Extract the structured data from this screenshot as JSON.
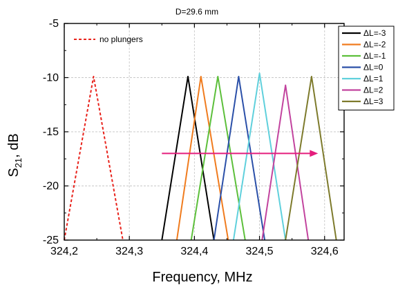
{
  "chart_data": {
    "type": "line",
    "title": "D=29.6 mm",
    "xlabel": "Frequency, MHz",
    "ylabel_main": "S",
    "ylabel_sub": "21",
    "ylabel_rest": ", dB",
    "xlim": [
      324.2,
      324.63
    ],
    "ylim": [
      -25,
      -5
    ],
    "xticks": [
      324.2,
      324.3,
      324.4,
      324.5,
      324.6
    ],
    "xtick_labels": [
      "324,2",
      "324,3",
      "324,4",
      "324,5",
      "324,6"
    ],
    "yticks": [
      -25,
      -20,
      -15,
      -10,
      -5
    ],
    "ytick_labels": [
      "-25",
      "-20",
      "-15",
      "-10",
      "-5"
    ],
    "grid": true,
    "legend_position": "top-right",
    "series": [
      {
        "name": "no plungers",
        "color": "#e8221b",
        "dash": true,
        "x": [
          324.2,
          324.245,
          324.29
        ],
        "y": [
          -25,
          -9.9,
          -25
        ]
      },
      {
        "name": "ΔL=-3",
        "color": "#000000",
        "dash": false,
        "x": [
          324.35,
          324.39,
          324.43
        ],
        "y": [
          -25,
          -9.9,
          -25
        ]
      },
      {
        "name": "ΔL=-2",
        "color": "#f07b1d",
        "dash": false,
        "x": [
          324.373,
          324.41,
          324.452
        ],
        "y": [
          -25,
          -9.9,
          -25
        ]
      },
      {
        "name": "ΔL=-1",
        "color": "#5cbf3a",
        "dash": false,
        "x": [
          324.395,
          324.436,
          324.478
        ],
        "y": [
          -25,
          -9.9,
          -25
        ]
      },
      {
        "name": "ΔL=0",
        "color": "#2a4fa8",
        "dash": false,
        "x": [
          324.43,
          324.468,
          324.508
        ],
        "y": [
          -25,
          -9.9,
          -25
        ]
      },
      {
        "name": "ΔL=1",
        "color": "#5fd0dc",
        "dash": false,
        "x": [
          324.46,
          324.5,
          324.54
        ],
        "y": [
          -25,
          -9.6,
          -25
        ]
      },
      {
        "name": "ΔL=2",
        "color": "#c2439e",
        "dash": false,
        "x": [
          324.504,
          324.54,
          324.575
        ],
        "y": [
          -25,
          -10.7,
          -25
        ]
      },
      {
        "name": "ΔL=3",
        "color": "#7d7a2b",
        "dash": false,
        "x": [
          324.54,
          324.58,
          324.618
        ],
        "y": [
          -25,
          -9.9,
          -25
        ]
      }
    ],
    "annotations": [
      {
        "type": "arrow",
        "color": "#e41d7c",
        "x_start": 324.35,
        "x_end": 324.59,
        "y": -17
      }
    ]
  }
}
